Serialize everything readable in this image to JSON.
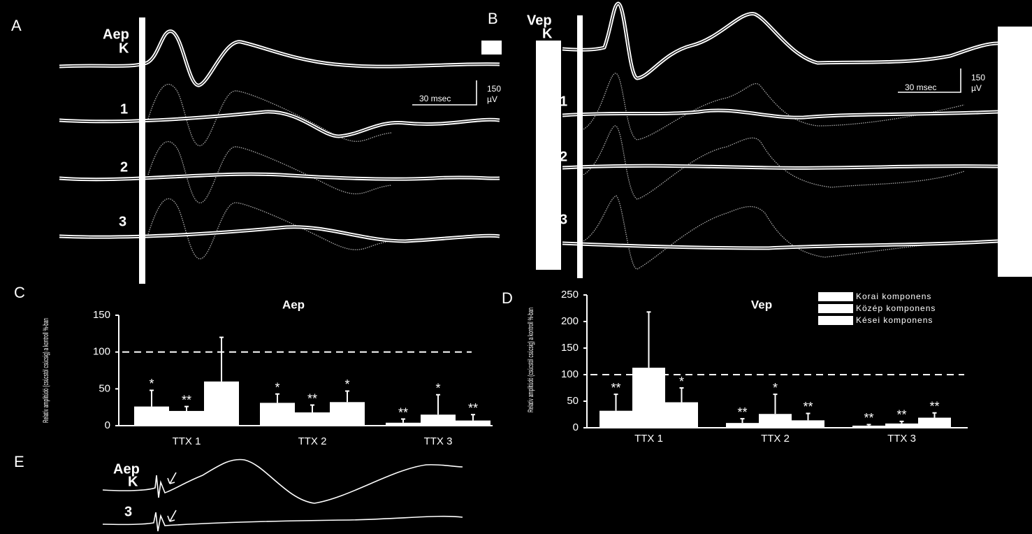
{
  "panel_labels": [
    "A",
    "B",
    "C",
    "D",
    "E"
  ],
  "traces": {
    "A": {
      "labels": [
        "Aep",
        "K",
        "1",
        "2",
        "3"
      ],
      "scale_time": "30 msec",
      "scale_amp": "150",
      "scale_unit": "µV"
    },
    "B": {
      "labels": [
        "Vep",
        "K",
        "1",
        "2",
        "3"
      ],
      "scale_time": "30 msec",
      "scale_amp": "150",
      "scale_unit": "µV"
    },
    "E": {
      "labels": [
        "Aep",
        "K",
        "3"
      ]
    }
  },
  "chart_data": [
    {
      "type": "bar",
      "title": "Aep",
      "y_label": "Relatív amplitúdó (csúcstól csúcsig) a kontroll %-ban",
      "categories": [
        "TTX 1",
        "TTX 2",
        "TTX 3"
      ],
      "series": [
        {
          "color": "#ffffff",
          "values": [
            26,
            31,
            4
          ],
          "errors": [
            22,
            12,
            5
          ],
          "annotations": [
            "*",
            "*",
            "**"
          ]
        },
        {
          "color": "#ffffff",
          "values": [
            20,
            18,
            15
          ],
          "errors": [
            6,
            10,
            27
          ],
          "annotations": [
            "**",
            "**",
            "*"
          ]
        },
        {
          "color": "#ffffff",
          "values": [
            60,
            32,
            7
          ],
          "errors": [
            60,
            15,
            8
          ],
          "annotations": [
            null,
            "*",
            "**"
          ]
        }
      ],
      "ylim": [
        0,
        150
      ],
      "yticks": [
        0,
        50,
        100,
        150
      ],
      "ref_line": 100
    },
    {
      "type": "bar",
      "title": "Vep",
      "y_label": "Relatív amplitúdó (csúcstól csúcsig) a kontroll %-ban",
      "categories": [
        "TTX 1",
        "TTX 2",
        "TTX 3"
      ],
      "series": [
        {
          "name": "Korai komponens",
          "color": "#ffffff",
          "values": [
            32,
            9,
            4
          ],
          "errors": [
            31,
            8,
            2
          ],
          "annotations": [
            "**",
            "**",
            "**"
          ]
        },
        {
          "name": "Közép komponens",
          "color": "#ffffff",
          "values": [
            113,
            26,
            8
          ],
          "errors": [
            105,
            37,
            4
          ],
          "annotations": [
            null,
            "*",
            "**"
          ]
        },
        {
          "name": "Kései komponens",
          "color": "#ffffff",
          "values": [
            48,
            14,
            19
          ],
          "errors": [
            27,
            13,
            9
          ],
          "annotations": [
            "*",
            "**",
            "**"
          ]
        }
      ],
      "ylim": [
        0,
        250
      ],
      "yticks": [
        0,
        50,
        100,
        150,
        200,
        250
      ],
      "ref_line": 100,
      "legend": "top-right"
    }
  ]
}
